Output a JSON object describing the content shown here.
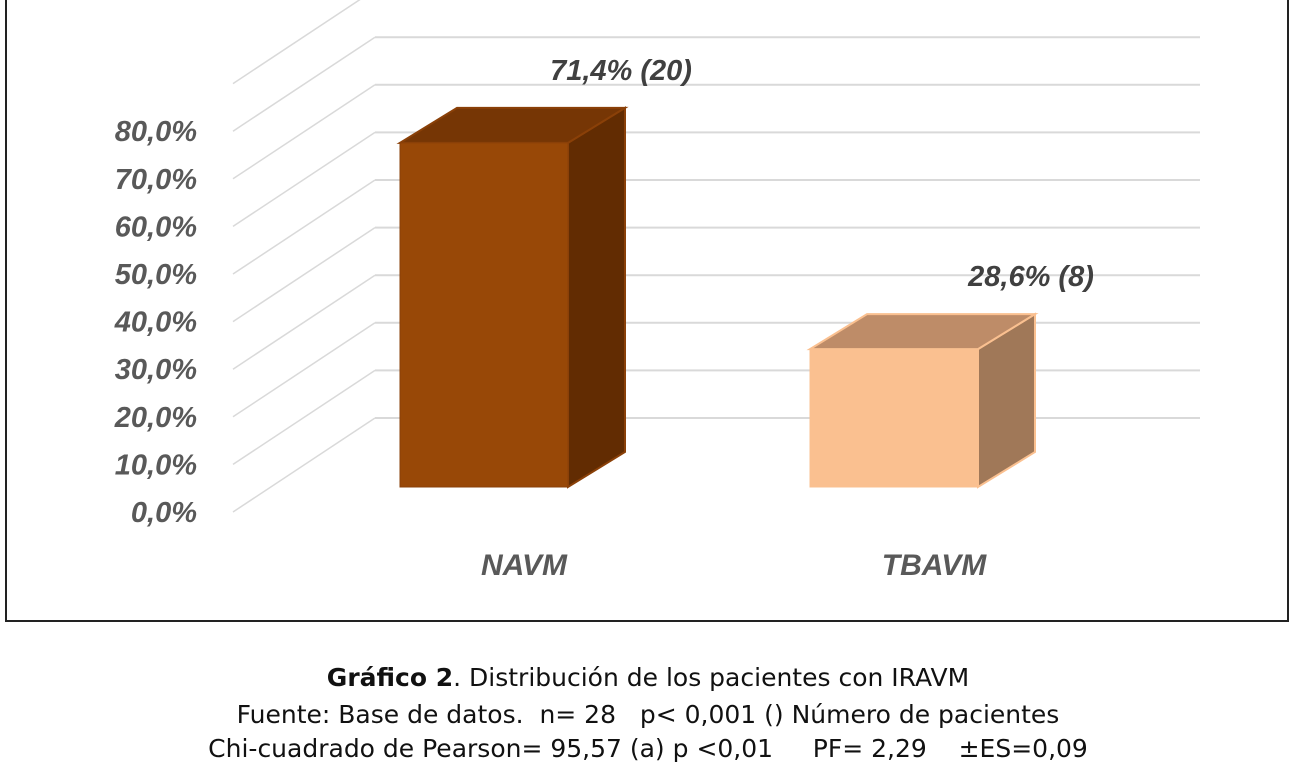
{
  "chart_data": {
    "type": "bar",
    "style": "3d-column",
    "categories": [
      "NAVM",
      "TBAVM"
    ],
    "values": [
      71.4,
      28.6
    ],
    "data_labels": [
      "71,4% (20)",
      "28,6% (8)"
    ],
    "ylim": [
      0,
      80
    ],
    "yticks": [
      "0,0%",
      "10,0%",
      "20,0%",
      "30,0%",
      "40,0%",
      "50,0%",
      "60,0%",
      "70,0%",
      "80,0%"
    ],
    "grid": true,
    "colors": {
      "NAVM": {
        "front": "#984807",
        "top": "#763605",
        "side": "#622C02"
      },
      "TBAVM": {
        "front": "#FAC090",
        "top": "#BE8C68",
        "side": "#A07858",
        "edge": "#FAC090"
      }
    },
    "tick_color": "#595959",
    "label_color": "#404040"
  },
  "caption": {
    "bold": "Gráfico 2",
    "title": ". Distribución de los pacientes con IRAVM",
    "line2": "Fuente: Base de datos.  n= 28   p< 0,001 () Número de pacientes",
    "line3": "Chi-cuadrado de Pearson= 95,57 (a) p <0,01     PF= 2,29    ±ES=0,09"
  }
}
